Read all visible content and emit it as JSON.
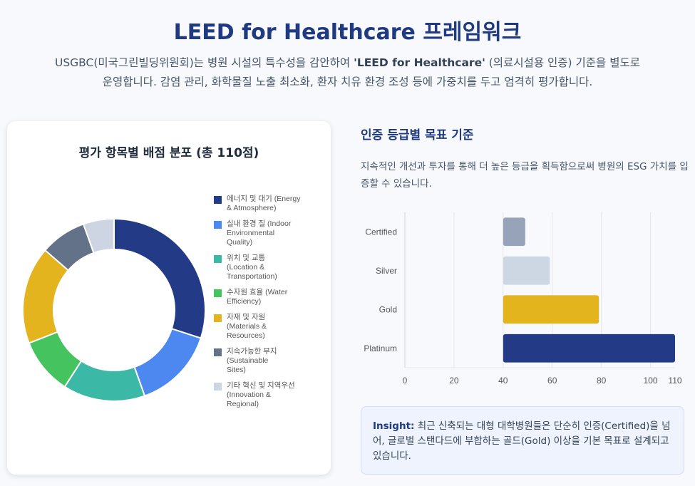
{
  "header": {
    "title": "LEED for Healthcare 프레임워크",
    "intro_before": "USGBC(미국그린빌딩위원회)는 병원 시설의 특수성을 감안하여 ",
    "intro_bold": "'LEED for Healthcare'",
    "intro_after": " (의료시설용 인증) 기준을 별도로 운영합니다. 감염 관리, 화학물질 노출 최소화, 환자 치유 환경 조성 등에 가중치를 두고 엄격히 평가합니다."
  },
  "donut_panel": {
    "title": "평가 항목별 배점 분포 (총 110점)"
  },
  "target_panel": {
    "title": "인증 등급별 목표 기준",
    "description": "지속적인 개선과 투자를 통해 더 높은 등급을 획득함으로써 병원의 ESG 가치를 입증할 수 있습니다."
  },
  "insight": {
    "label": "Insight:",
    "text": " 최근 신축되는 대형 대학병원들은 단순히 인증(Certified)을 넘어, 글로벌 스탠다드에 부합하는 골드(Gold) 이상을 기본 목표로 설계되고 있습니다."
  },
  "chart_data": [
    {
      "type": "pie",
      "title": "평가 항목별 배점 분포 (총 110점)",
      "categories": [
        [
          "에너지 및 대기 (Energy",
          "& Atmosphere)"
        ],
        [
          "실내 환경 질 (Indoor",
          "Environmental",
          "Quality)"
        ],
        [
          "위치 및 교통",
          "(Location &",
          "Transportation)"
        ],
        [
          "수자원 효율 (Water",
          "Efficiency)"
        ],
        [
          "자재 및 자원",
          "(Materials &",
          "Resources)"
        ],
        [
          "지속가능한 부지",
          "(Sustainable",
          "Sites)"
        ],
        [
          "기타 혁신 및 지역우선",
          "(Innovation &",
          "Regional)"
        ]
      ],
      "values": [
        33,
        16,
        16,
        11,
        19,
        9,
        6
      ],
      "colors": [
        "#233a86",
        "#4d88f0",
        "#3cb8a6",
        "#45c35f",
        "#e4b41f",
        "#637189",
        "#ccd5e1"
      ],
      "legend_position": "right"
    },
    {
      "type": "bar",
      "orientation": "horizontal",
      "categories": [
        "Certified",
        "Silver",
        "Gold",
        "Platinum"
      ],
      "ranges": [
        [
          40,
          49
        ],
        [
          40,
          59
        ],
        [
          40,
          79
        ],
        [
          40,
          110
        ]
      ],
      "colors": [
        "#97a3b8",
        "#cdd6e3",
        "#e4b41f",
        "#233a86"
      ],
      "xlim": [
        0,
        110
      ],
      "xticks": [
        0,
        20,
        40,
        60,
        80,
        100,
        110
      ],
      "grid": true
    }
  ]
}
